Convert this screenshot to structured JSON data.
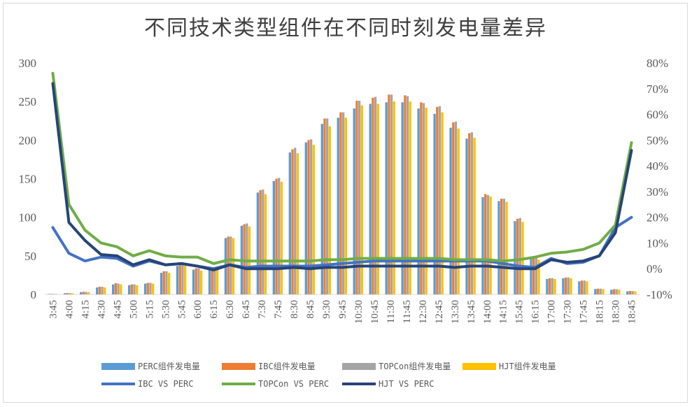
{
  "chart_data": {
    "type": "bar",
    "title": "不同技术类型组件在不同时刻发电量差异",
    "categories": [
      "3:45",
      "4:00",
      "4:15",
      "4:30",
      "4:45",
      "5:00",
      "5:15",
      "5:30",
      "5:45",
      "6:00",
      "6:15",
      "6:30",
      "6:45",
      "7:30",
      "7:45",
      "8:30",
      "8:45",
      "9:30",
      "9:45",
      "10:30",
      "10:45",
      "11:30",
      "11:45",
      "12:30",
      "12:45",
      "13:30",
      "13:45",
      "14:00",
      "14:15",
      "15:45",
      "16:15",
      "17:00",
      "17:30",
      "17:45",
      "18:15",
      "18:30",
      "18:45"
    ],
    "ylim": [
      0,
      300
    ],
    "y_ticks": [
      "0",
      "50",
      "100",
      "150",
      "200",
      "250",
      "300"
    ],
    "y2lim": [
      -0.1,
      0.8
    ],
    "y2_ticks": [
      "-10%",
      "0%",
      "10%",
      "20%",
      "30%",
      "40%",
      "50%",
      "60%",
      "70%",
      "80%"
    ],
    "series": [
      {
        "name": "PERC组件发电量",
        "kind": "bar",
        "color": "#5b9bd5",
        "values": [
          0.5,
          1.5,
          3,
          9,
          13,
          12,
          14,
          28,
          37,
          32,
          33,
          73,
          89,
          132,
          147,
          184,
          197,
          221,
          229,
          241,
          247,
          249,
          249,
          241,
          234,
          216,
          202,
          126,
          121,
          95,
          46,
          20,
          21,
          17,
          7,
          6,
          4
        ]
      },
      {
        "name": "IBC组件发电量",
        "kind": "bar",
        "color": "#ed7d31",
        "values": [
          0.6,
          1.7,
          3.4,
          10,
          14.5,
          13,
          15,
          30,
          40,
          34,
          35,
          75,
          91,
          135,
          150,
          188,
          200,
          228,
          236,
          251,
          255,
          259,
          258,
          249,
          243,
          223,
          209,
          130,
          124,
          98,
          47,
          21,
          22,
          18,
          7.5,
          6.8,
          4.5
        ]
      },
      {
        "name": "TOPCon组件发电量",
        "kind": "bar",
        "color": "#a5a5a5",
        "values": [
          0.6,
          1.6,
          3.3,
          10,
          14,
          13,
          15,
          30,
          40,
          34,
          35,
          75,
          92,
          136,
          151,
          190,
          201,
          228,
          236,
          251,
          256,
          259,
          257,
          248,
          244,
          224,
          210,
          129,
          124,
          99,
          48,
          21,
          22,
          18,
          7.4,
          6.7,
          4.4
        ]
      },
      {
        "name": "HJT组件发电量",
        "kind": "bar",
        "color": "#ffc000",
        "values": [
          0.5,
          1.4,
          3,
          9,
          13,
          12,
          14,
          28,
          37,
          31,
          32,
          73,
          88,
          130,
          146,
          183,
          194,
          218,
          229,
          245,
          247,
          250,
          250,
          242,
          236,
          215,
          203,
          127,
          120,
          94,
          45,
          20,
          21,
          17,
          7,
          6.1,
          4
        ]
      },
      {
        "name": "IBC VS PERC",
        "kind": "line",
        "color": "#4472c4",
        "values": [
          0.16,
          0.06,
          0.03,
          0.045,
          0.04,
          0.01,
          0.03,
          0.015,
          0.02,
          0.01,
          0.0,
          0.015,
          0.005,
          0.01,
          0.01,
          0.01,
          0.01,
          0.015,
          0.02,
          0.025,
          0.03,
          0.03,
          0.03,
          0.03,
          0.03,
          0.03,
          0.03,
          0.03,
          0.02,
          0.01,
          0.005,
          0.04,
          0.02,
          0.025,
          0.05,
          0.16,
          0.2
        ]
      },
      {
        "name": "TOPCon VS PERC",
        "kind": "line",
        "color": "#70ad47",
        "values": [
          0.76,
          0.25,
          0.15,
          0.1,
          0.085,
          0.05,
          0.07,
          0.05,
          0.045,
          0.045,
          0.02,
          0.035,
          0.03,
          0.03,
          0.03,
          0.03,
          0.03,
          0.035,
          0.035,
          0.04,
          0.04,
          0.04,
          0.04,
          0.04,
          0.04,
          0.035,
          0.035,
          0.035,
          0.03,
          0.035,
          0.045,
          0.06,
          0.065,
          0.075,
          0.1,
          0.17,
          0.49
        ]
      },
      {
        "name": "HJT VS PERC",
        "kind": "line",
        "color": "#264478",
        "values": [
          0.72,
          0.18,
          0.11,
          0.055,
          0.05,
          0.015,
          0.035,
          0.015,
          0.02,
          0.01,
          -0.005,
          0.015,
          0.0,
          0.0,
          0.0,
          0.005,
          0.0,
          0.005,
          0.005,
          0.01,
          0.01,
          0.01,
          0.01,
          0.01,
          0.01,
          0.005,
          0.01,
          0.01,
          0.005,
          0.0,
          0.0,
          0.035,
          0.025,
          0.03,
          0.05,
          0.14,
          0.46
        ]
      }
    ]
  }
}
